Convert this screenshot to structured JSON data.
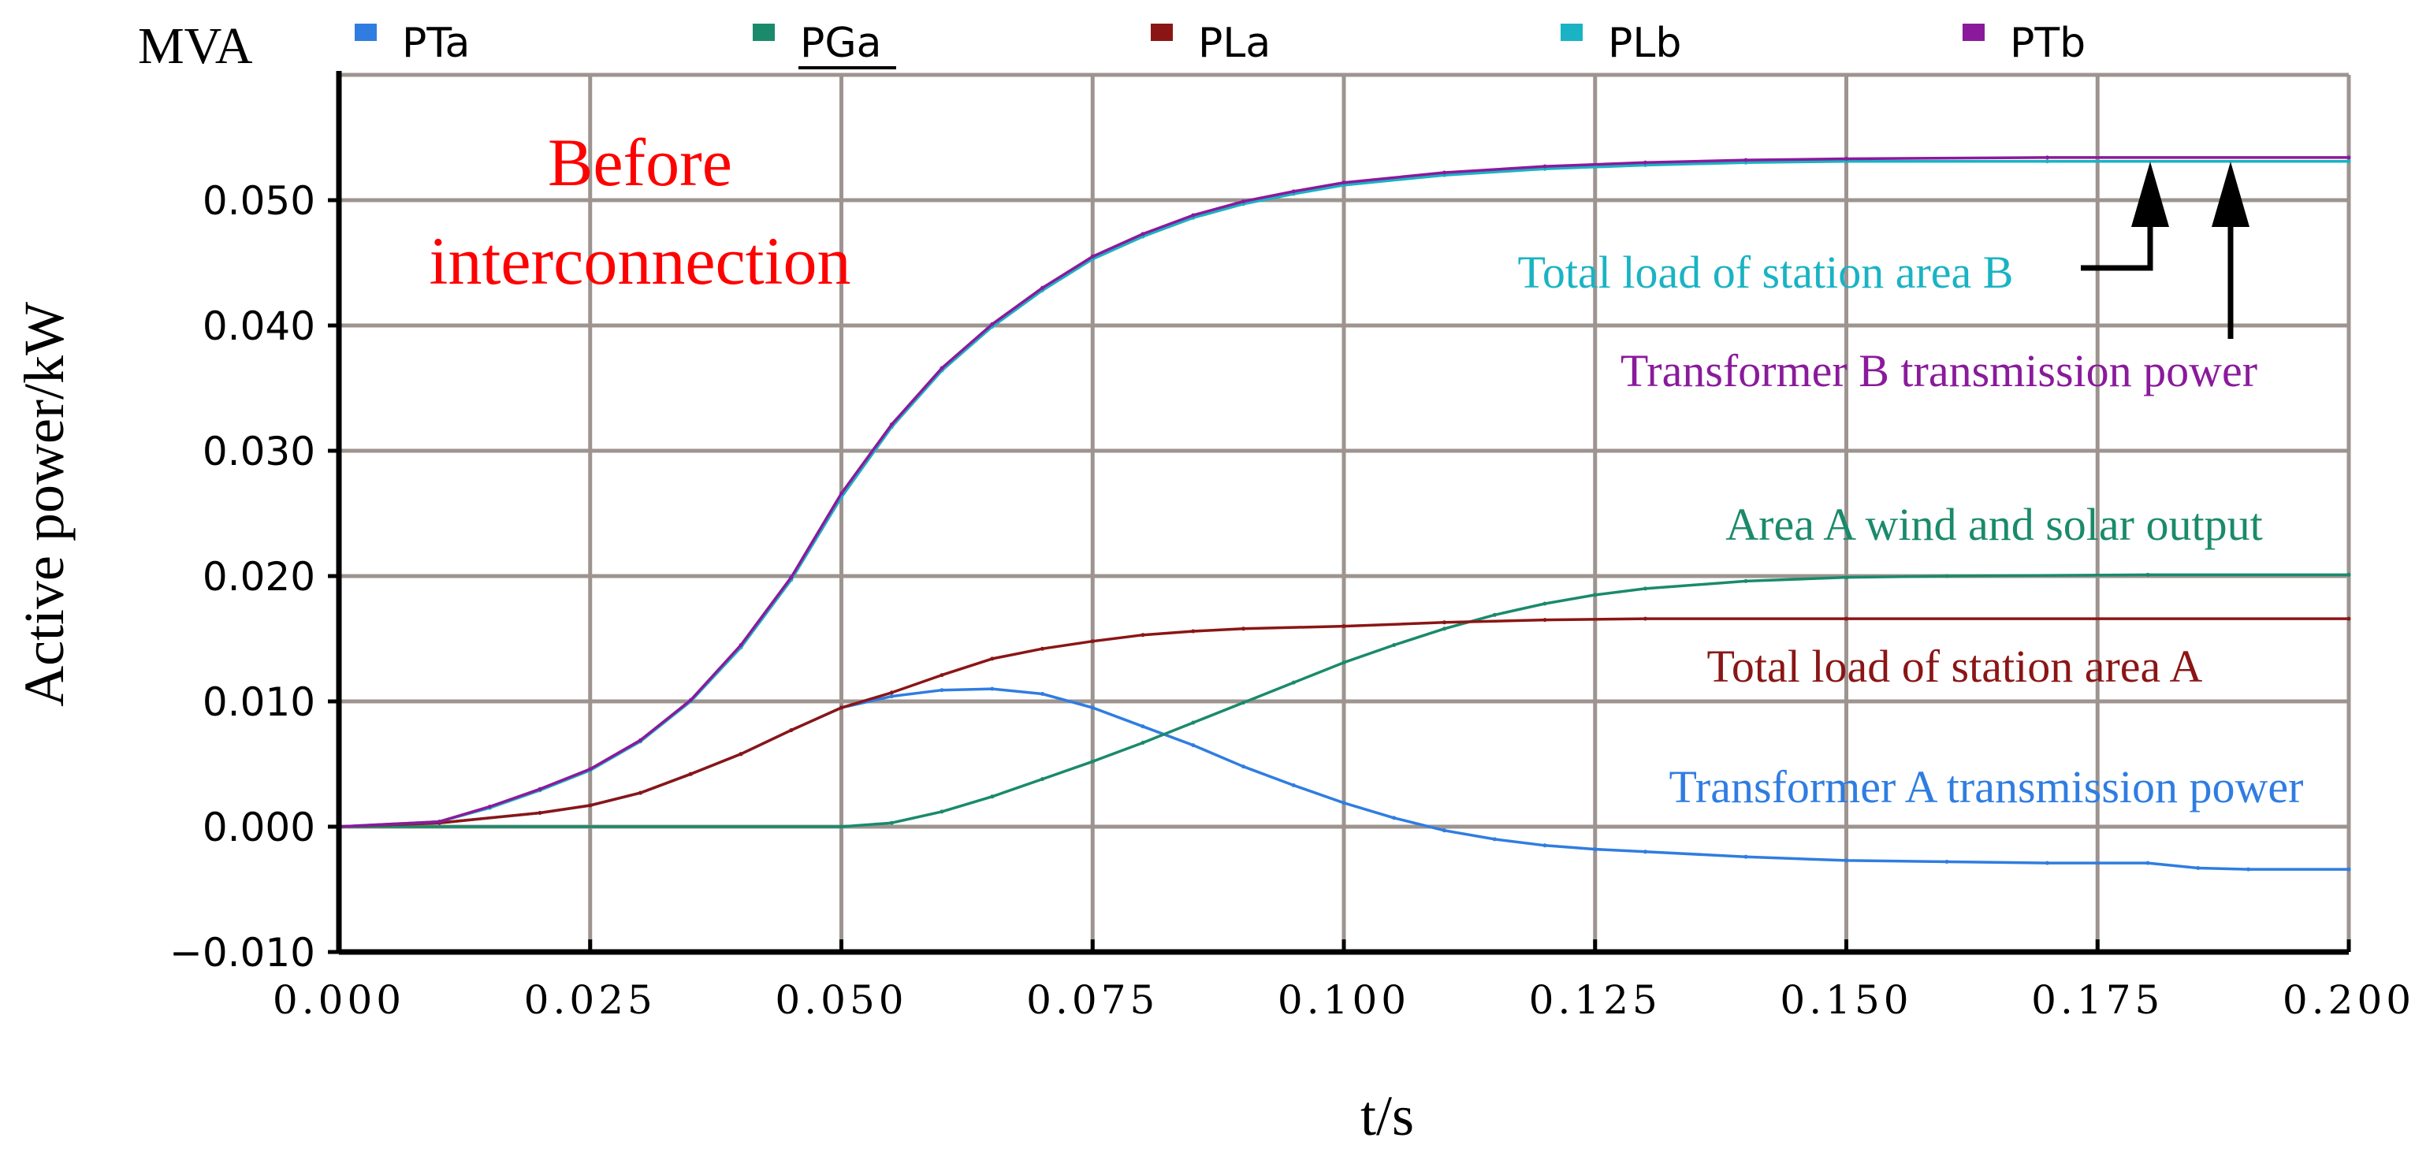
{
  "chart_data": {
    "type": "line",
    "unit_label": "MVA",
    "ylabel": "Active power/kW",
    "xlabel": "t/s",
    "xlim": [
      0,
      0.2
    ],
    "ylim": [
      -0.01,
      0.06
    ],
    "grid": true,
    "x_ticks": [
      "0.000",
      "0.025",
      "0.050",
      "0.075",
      "0.100",
      "0.125",
      "0.150",
      "0.175",
      "0.200"
    ],
    "y_ticks": [
      "−0.010",
      "0.000",
      "0.010",
      "0.020",
      "0.030",
      "0.040",
      "0.050"
    ],
    "legend_position": "top",
    "series": [
      {
        "name": "PTa",
        "color": "#2f7de1",
        "x": [
          0,
          0.01,
          0.02,
          0.025,
          0.03,
          0.035,
          0.04,
          0.045,
          0.05,
          0.055,
          0.06,
          0.065,
          0.07,
          0.075,
          0.08,
          0.085,
          0.09,
          0.095,
          0.1,
          0.105,
          0.11,
          0.115,
          0.12,
          0.125,
          0.13,
          0.14,
          0.15,
          0.16,
          0.17,
          0.18,
          0.185,
          0.19,
          0.2
        ],
        "values": [
          0,
          0.0003,
          0.0011,
          0.0017,
          0.0027,
          0.0042,
          0.0058,
          0.0077,
          0.0095,
          0.0104,
          0.0109,
          0.011,
          0.0106,
          0.0095,
          0.008,
          0.0065,
          0.0048,
          0.0033,
          0.0019,
          0.0007,
          -0.0003,
          -0.001,
          -0.0015,
          -0.0018,
          -0.002,
          -0.0024,
          -0.0027,
          -0.0028,
          -0.0029,
          -0.0029,
          -0.0033,
          -0.0034,
          -0.0034
        ]
      },
      {
        "name": "PGa",
        "color": "#1a8a6b",
        "x": [
          0,
          0.05,
          0.055,
          0.06,
          0.065,
          0.07,
          0.075,
          0.08,
          0.085,
          0.09,
          0.095,
          0.1,
          0.105,
          0.11,
          0.115,
          0.12,
          0.125,
          0.13,
          0.14,
          0.15,
          0.16,
          0.18,
          0.2
        ],
        "values": [
          0,
          0,
          0.0003,
          0.0012,
          0.0024,
          0.0038,
          0.0052,
          0.0067,
          0.0083,
          0.0099,
          0.0115,
          0.0131,
          0.0145,
          0.0158,
          0.0169,
          0.0178,
          0.0185,
          0.019,
          0.0196,
          0.0199,
          0.02,
          0.0201,
          0.0201
        ]
      },
      {
        "name": "PLa",
        "color": "#8b1515",
        "x": [
          0,
          0.01,
          0.02,
          0.025,
          0.03,
          0.035,
          0.04,
          0.045,
          0.05,
          0.055,
          0.06,
          0.065,
          0.07,
          0.075,
          0.08,
          0.085,
          0.09,
          0.1,
          0.11,
          0.12,
          0.13,
          0.15,
          0.2
        ],
        "values": [
          0,
          0.0003,
          0.0011,
          0.0017,
          0.0027,
          0.0042,
          0.0058,
          0.0077,
          0.0095,
          0.0107,
          0.0121,
          0.0134,
          0.0142,
          0.0148,
          0.0153,
          0.0156,
          0.0158,
          0.016,
          0.0163,
          0.0165,
          0.0166,
          0.0166,
          0.0166
        ]
      },
      {
        "name": "PLb",
        "color": "#19b3c4",
        "x": [
          0,
          0.01,
          0.015,
          0.02,
          0.025,
          0.03,
          0.035,
          0.04,
          0.045,
          0.05,
          0.055,
          0.06,
          0.065,
          0.07,
          0.075,
          0.08,
          0.085,
          0.09,
          0.095,
          0.1,
          0.11,
          0.12,
          0.13,
          0.14,
          0.15,
          0.17,
          0.2
        ],
        "values": [
          0,
          0.0004,
          0.0015,
          0.0029,
          0.0045,
          0.0068,
          0.01,
          0.0143,
          0.0197,
          0.0263,
          0.0319,
          0.0364,
          0.0399,
          0.0428,
          0.0453,
          0.0471,
          0.0486,
          0.0497,
          0.0505,
          0.0512,
          0.052,
          0.0525,
          0.0528,
          0.053,
          0.0531,
          0.0531,
          0.0531
        ]
      },
      {
        "name": "PTb",
        "color": "#8a1a9b",
        "x": [
          0,
          0.01,
          0.015,
          0.02,
          0.025,
          0.03,
          0.035,
          0.04,
          0.045,
          0.05,
          0.055,
          0.06,
          0.065,
          0.07,
          0.075,
          0.08,
          0.085,
          0.09,
          0.095,
          0.1,
          0.11,
          0.12,
          0.13,
          0.14,
          0.15,
          0.17,
          0.2
        ],
        "values": [
          0,
          0.0004,
          0.0016,
          0.003,
          0.0046,
          0.0069,
          0.0101,
          0.0145,
          0.0199,
          0.0266,
          0.0321,
          0.0366,
          0.0401,
          0.043,
          0.0455,
          0.0473,
          0.0488,
          0.0499,
          0.0507,
          0.0514,
          0.0522,
          0.0527,
          0.053,
          0.0532,
          0.0533,
          0.0534,
          0.0534
        ]
      }
    ],
    "annotations": {
      "title": [
        "Before",
        "interconnection"
      ],
      "plb_label": "Total load of station area B",
      "ptb_label": "Transformer B transmission power",
      "pga_label": "Area A wind and solar output",
      "pla_label": "Total load of station area A",
      "pta_label": "Transformer A transmission power"
    }
  },
  "colors": {
    "grid": "#9d9490",
    "title": "#ff0000",
    "arrow": "#000000"
  }
}
